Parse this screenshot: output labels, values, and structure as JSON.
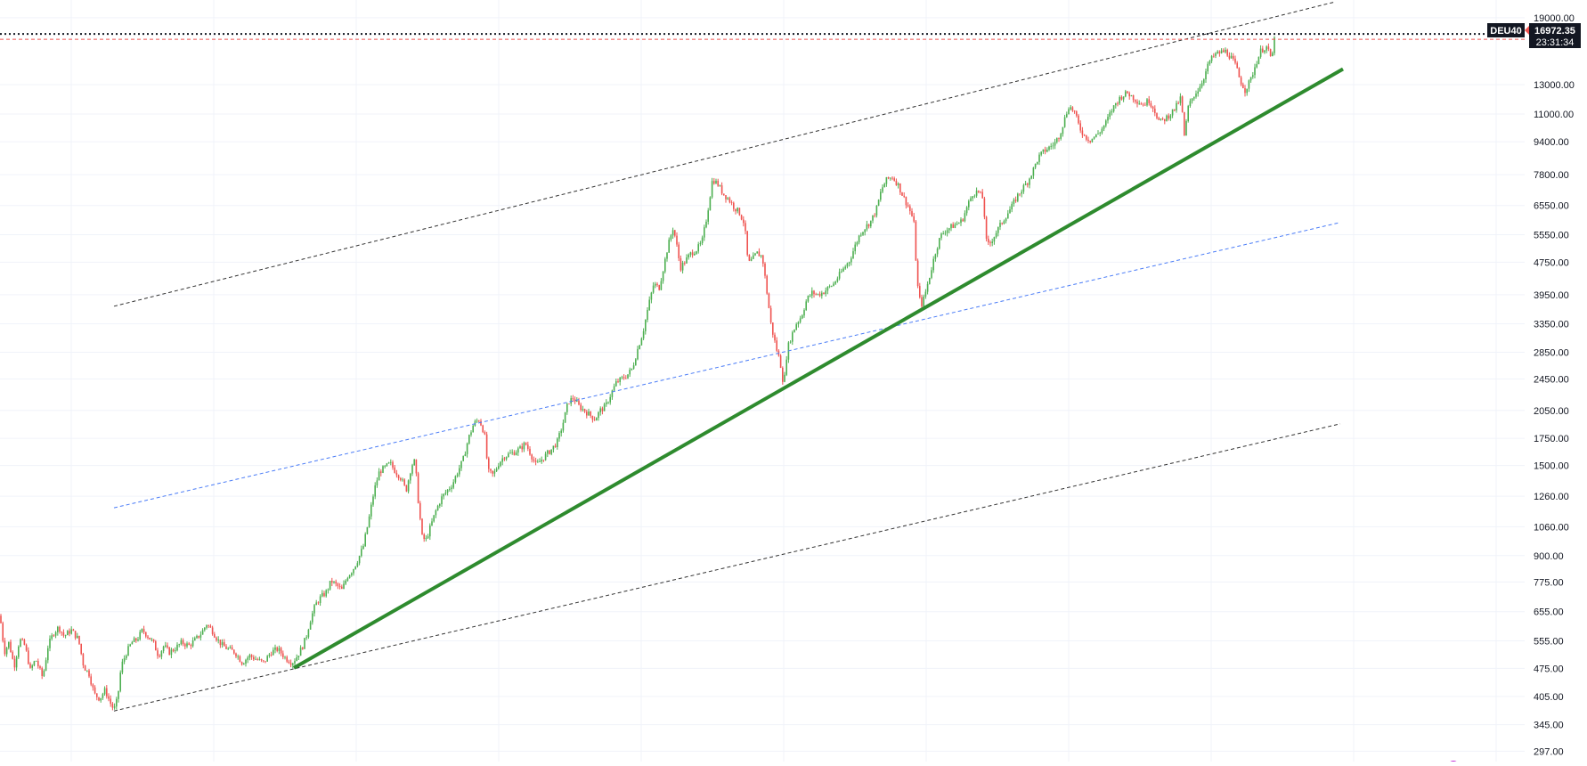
{
  "chart_data": {
    "type": "candlestick",
    "scale": "log",
    "grid": true,
    "ylim": [
      280,
      21000
    ],
    "y_ticks": [
      "19000.00",
      "13000.00",
      "11000.00",
      "9400.00",
      "7800.00",
      "6550.00",
      "5550.00",
      "4750.00",
      "3950.00",
      "3350.00",
      "2850.00",
      "2450.00",
      "2050.00",
      "1750.00",
      "1500.00",
      "1260.00",
      "1060.00",
      "900.00",
      "775.00",
      "655.00",
      "555.00",
      "475.00",
      "405.00",
      "345.00",
      "297.00"
    ],
    "symbol": "DEU40",
    "last_price": "16972.35",
    "countdown": "23:31:34",
    "last_value": 16972.35,
    "colors": {
      "up": "#4caf50",
      "down": "#ef5350",
      "trendline": "#2e8b2e",
      "channel": "#333333",
      "midline": "#4a7cf7",
      "price_line": "#ef5350",
      "label_bg": "#131722"
    },
    "price_path": [
      [
        0,
        640
      ],
      [
        5,
        520
      ],
      [
        10,
        550
      ],
      [
        16,
        480
      ],
      [
        22,
        560
      ],
      [
        28,
        540
      ],
      [
        34,
        470
      ],
      [
        40,
        500
      ],
      [
        48,
        450
      ],
      [
        54,
        540
      ],
      [
        60,
        580
      ],
      [
        66,
        600
      ],
      [
        72,
        570
      ],
      [
        80,
        590
      ],
      [
        88,
        560
      ],
      [
        94,
        480
      ],
      [
        100,
        460
      ],
      [
        106,
        410
      ],
      [
        112,
        400
      ],
      [
        118,
        420
      ],
      [
        124,
        390
      ],
      [
        128,
        375
      ],
      [
        132,
        400
      ],
      [
        136,
        480
      ],
      [
        142,
        520
      ],
      [
        148,
        550
      ],
      [
        154,
        560
      ],
      [
        160,
        590
      ],
      [
        166,
        570
      ],
      [
        172,
        550
      ],
      [
        178,
        510
      ],
      [
        184,
        540
      ],
      [
        190,
        520
      ],
      [
        196,
        530
      ],
      [
        204,
        550
      ],
      [
        212,
        540
      ],
      [
        220,
        560
      ],
      [
        226,
        580
      ],
      [
        232,
        610
      ],
      [
        238,
        590
      ],
      [
        244,
        560
      ],
      [
        250,
        540
      ],
      [
        256,
        530
      ],
      [
        264,
        520
      ],
      [
        272,
        490
      ],
      [
        280,
        510
      ],
      [
        288,
        500
      ],
      [
        296,
        490
      ],
      [
        304,
        520
      ],
      [
        312,
        530
      ],
      [
        320,
        505
      ],
      [
        328,
        490
      ],
      [
        334,
        510
      ],
      [
        340,
        540
      ],
      [
        344,
        570
      ],
      [
        348,
        620
      ],
      [
        354,
        680
      ],
      [
        360,
        710
      ],
      [
        366,
        730
      ],
      [
        372,
        780
      ],
      [
        378,
        760
      ],
      [
        384,
        740
      ],
      [
        390,
        800
      ],
      [
        396,
        830
      ],
      [
        402,
        880
      ],
      [
        408,
        950
      ],
      [
        414,
        1100
      ],
      [
        420,
        1300
      ],
      [
        426,
        1450
      ],
      [
        432,
        1480
      ],
      [
        438,
        1520
      ],
      [
        444,
        1450
      ],
      [
        450,
        1400
      ],
      [
        456,
        1300
      ],
      [
        462,
        1500
      ],
      [
        466,
        1540
      ],
      [
        470,
        1200
      ],
      [
        474,
        1000
      ],
      [
        478,
        980
      ],
      [
        484,
        1070
      ],
      [
        490,
        1170
      ],
      [
        496,
        1250
      ],
      [
        502,
        1300
      ],
      [
        508,
        1350
      ],
      [
        514,
        1450
      ],
      [
        520,
        1550
      ],
      [
        526,
        1750
      ],
      [
        532,
        1900
      ],
      [
        538,
        1950
      ],
      [
        544,
        1800
      ],
      [
        548,
        1450
      ],
      [
        554,
        1420
      ],
      [
        560,
        1520
      ],
      [
        566,
        1580
      ],
      [
        572,
        1600
      ],
      [
        578,
        1620
      ],
      [
        584,
        1650
      ],
      [
        590,
        1700
      ],
      [
        596,
        1600
      ],
      [
        602,
        1500
      ],
      [
        608,
        1550
      ],
      [
        614,
        1600
      ],
      [
        620,
        1650
      ],
      [
        626,
        1720
      ],
      [
        632,
        1900
      ],
      [
        638,
        2150
      ],
      [
        644,
        2200
      ],
      [
        650,
        2100
      ],
      [
        656,
        2050
      ],
      [
        662,
        2000
      ],
      [
        668,
        1950
      ],
      [
        674,
        2050
      ],
      [
        680,
        2100
      ],
      [
        686,
        2250
      ],
      [
        692,
        2400
      ],
      [
        698,
        2450
      ],
      [
        704,
        2500
      ],
      [
        710,
        2600
      ],
      [
        716,
        2900
      ],
      [
        722,
        3200
      ],
      [
        728,
        3700
      ],
      [
        734,
        4200
      ],
      [
        740,
        4100
      ],
      [
        744,
        4500
      ],
      [
        750,
        5200
      ],
      [
        756,
        5800
      ],
      [
        760,
        5200
      ],
      [
        764,
        4600
      ],
      [
        770,
        4800
      ],
      [
        776,
        5000
      ],
      [
        782,
        5100
      ],
      [
        788,
        5300
      ],
      [
        794,
        6200
      ],
      [
        800,
        7600
      ],
      [
        806,
        7400
      ],
      [
        812,
        7000
      ],
      [
        818,
        6800
      ],
      [
        824,
        6500
      ],
      [
        830,
        6300
      ],
      [
        836,
        5900
      ],
      [
        840,
        4700
      ],
      [
        844,
        4800
      ],
      [
        850,
        5000
      ],
      [
        856,
        4900
      ],
      [
        860,
        4200
      ],
      [
        866,
        3300
      ],
      [
        872,
        2900
      ],
      [
        876,
        2700
      ],
      [
        880,
        2350
      ],
      [
        884,
        2900
      ],
      [
        888,
        3100
      ],
      [
        894,
        3350
      ],
      [
        900,
        3500
      ],
      [
        906,
        3850
      ],
      [
        912,
        4000
      ],
      [
        918,
        3950
      ],
      [
        924,
        4000
      ],
      [
        930,
        4100
      ],
      [
        936,
        4200
      ],
      [
        942,
        4400
      ],
      [
        948,
        4600
      ],
      [
        954,
        4800
      ],
      [
        960,
        5200
      ],
      [
        966,
        5600
      ],
      [
        972,
        5800
      ],
      [
        978,
        6000
      ],
      [
        984,
        6400
      ],
      [
        990,
        7200
      ],
      [
        996,
        7600
      ],
      [
        1002,
        7700
      ],
      [
        1008,
        7400
      ],
      [
        1014,
        6900
      ],
      [
        1020,
        6500
      ],
      [
        1026,
        6000
      ],
      [
        1030,
        4200
      ],
      [
        1034,
        3700
      ],
      [
        1038,
        3900
      ],
      [
        1044,
        4400
      ],
      [
        1050,
        5000
      ],
      [
        1056,
        5500
      ],
      [
        1062,
        5700
      ],
      [
        1068,
        5800
      ],
      [
        1074,
        5900
      ],
      [
        1080,
        6000
      ],
      [
        1086,
        6500
      ],
      [
        1092,
        7000
      ],
      [
        1098,
        7100
      ],
      [
        1104,
        6800
      ],
      [
        1108,
        5200
      ],
      [
        1112,
        5300
      ],
      [
        1118,
        5600
      ],
      [
        1124,
        5900
      ],
      [
        1130,
        6200
      ],
      [
        1136,
        6500
      ],
      [
        1142,
        6900
      ],
      [
        1148,
        7200
      ],
      [
        1154,
        7500
      ],
      [
        1160,
        8000
      ],
      [
        1166,
        8600
      ],
      [
        1172,
        8900
      ],
      [
        1178,
        9100
      ],
      [
        1184,
        9300
      ],
      [
        1190,
        9800
      ],
      [
        1196,
        10800
      ],
      [
        1200,
        11500
      ],
      [
        1206,
        11200
      ],
      [
        1212,
        10200
      ],
      [
        1218,
        9700
      ],
      [
        1224,
        9500
      ],
      [
        1230,
        9700
      ],
      [
        1236,
        10000
      ],
      [
        1242,
        10500
      ],
      [
        1248,
        11200
      ],
      [
        1254,
        11800
      ],
      [
        1260,
        12200
      ],
      [
        1266,
        12400
      ],
      [
        1272,
        12100
      ],
      [
        1278,
        11800
      ],
      [
        1284,
        11600
      ],
      [
        1290,
        11900
      ],
      [
        1296,
        11300
      ],
      [
        1302,
        10500
      ],
      [
        1308,
        10700
      ],
      [
        1314,
        11000
      ],
      [
        1320,
        11400
      ],
      [
        1326,
        12100
      ],
      [
        1330,
        9600
      ],
      [
        1334,
        11400
      ],
      [
        1340,
        12200
      ],
      [
        1346,
        12700
      ],
      [
        1352,
        13600
      ],
      [
        1358,
        14800
      ],
      [
        1364,
        15400
      ],
      [
        1370,
        15600
      ],
      [
        1376,
        15700
      ],
      [
        1382,
        15200
      ],
      [
        1388,
        14400
      ],
      [
        1392,
        13400
      ],
      [
        1398,
        12600
      ],
      [
        1404,
        13300
      ],
      [
        1410,
        14600
      ],
      [
        1416,
        15800
      ],
      [
        1422,
        16100
      ],
      [
        1428,
        15000
      ],
      [
        1432,
        16972
      ]
    ]
  }
}
